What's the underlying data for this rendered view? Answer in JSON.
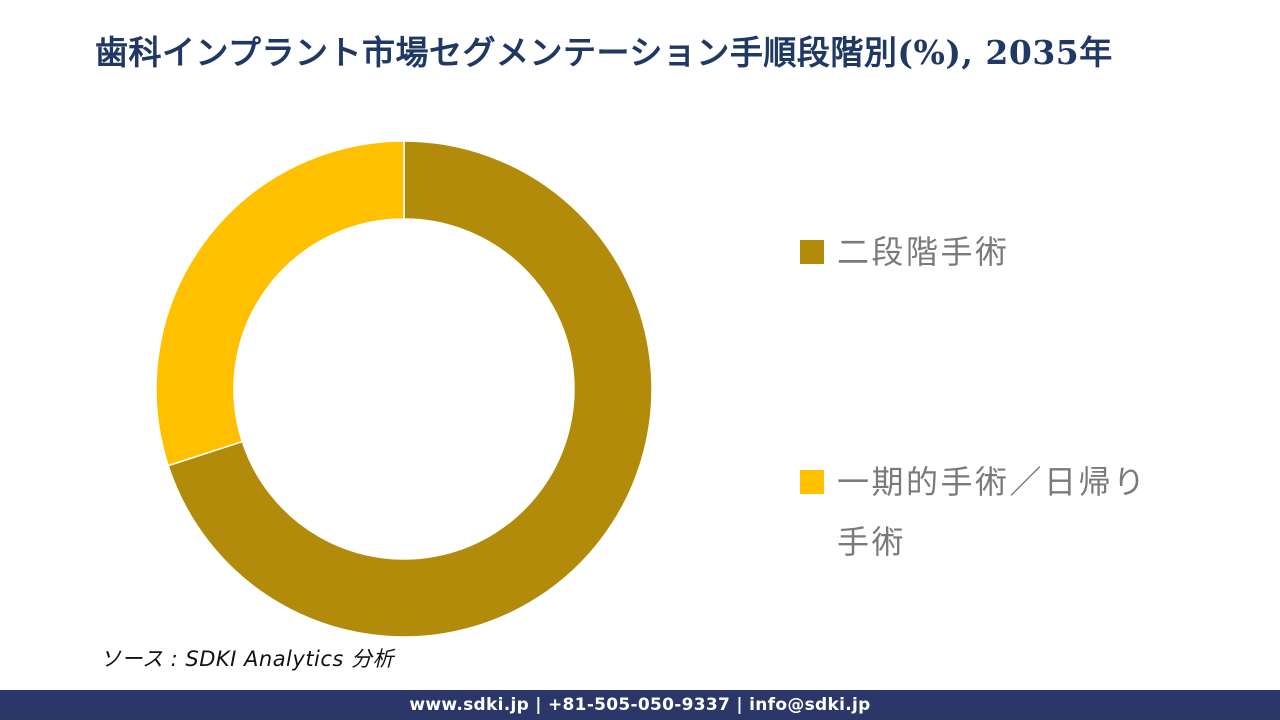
{
  "page": {
    "title": "歯科インプラント市場セグメンテーション手順段階別(%), 2035年",
    "source_note": "ソース : SDKI Analytics 分析",
    "footer_text": "www.sdki.jp | +81-505-050-9337 | info@sdki.jp"
  },
  "chart_data": {
    "type": "pie",
    "subtype": "donut",
    "title": "歯科インプラント市場セグメンテーション手順段階別(%), 2035年",
    "categories": [
      "二段階手術",
      "一期的手術／日帰り手術"
    ],
    "values": [
      70,
      30
    ],
    "unit": "%",
    "colors": [
      "#B18B09",
      "#FFC000"
    ],
    "start_angle_deg": 0,
    "direction": "clockwise",
    "inner_radius_ratio": 0.6855,
    "legend_position": "right",
    "data_labels": "off"
  },
  "colors": {
    "title_text": "#1F3864",
    "legend_text": "#7A7A7A",
    "slice_divider": "#FFFFFF",
    "footer_bg": "#2B3768",
    "footer_text": "#FFFFFF",
    "background": "#FFFFFF"
  }
}
